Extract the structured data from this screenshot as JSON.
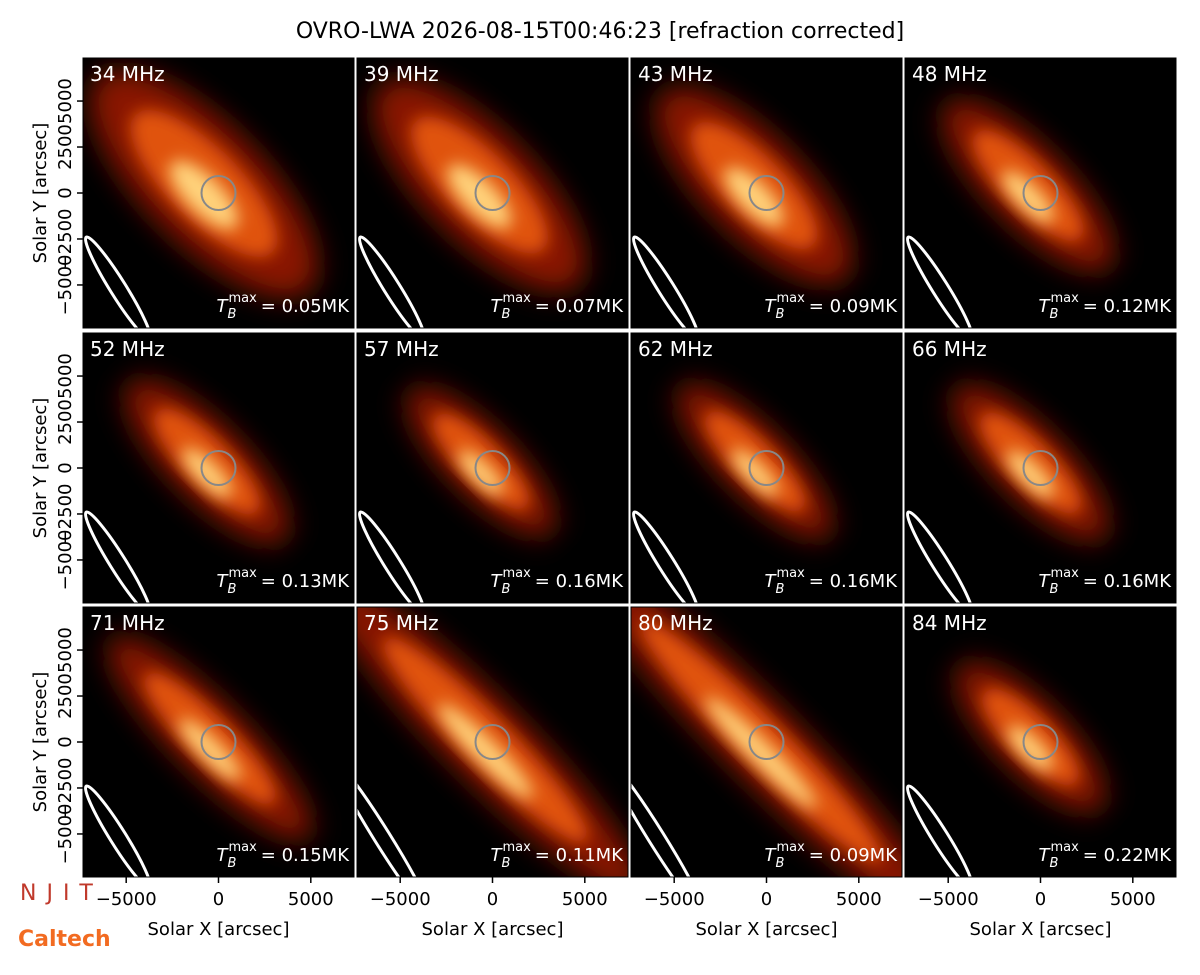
{
  "chart_data": {
    "type": "image",
    "title": "OVRO-LWA 2026-08-15T00:46:23 [refraction corrected]",
    "x_label": "Solar X [arcsec]",
    "y_label": "Solar Y [arcsec]",
    "xlim": [
      -7340,
      7340
    ],
    "ylim": [
      -7340,
      7340
    ],
    "xticks": [
      {
        "value": -5000,
        "label": "−5000"
      },
      0,
      5000
    ],
    "yticks": [
      {
        "value": -5000,
        "label": "−5000"
      },
      {
        "value": -2500,
        "label": "−2500"
      },
      0,
      2500,
      5000
    ],
    "quantity": {
      "symbol": "T",
      "subscript": "B",
      "superscript": "max"
    },
    "panels": [
      {
        "label": "34 MHz",
        "tb_max": 0.05,
        "tb_max_label": "= 0.05MK"
      },
      {
        "label": "39 MHz",
        "tb_max": 0.07,
        "tb_max_label": "= 0.07MK"
      },
      {
        "label": "43 MHz",
        "tb_max": 0.09,
        "tb_max_label": "= 0.09MK"
      },
      {
        "label": "48 MHz",
        "tb_max": 0.12,
        "tb_max_label": "= 0.12MK"
      },
      {
        "label": "52 MHz",
        "tb_max": 0.13,
        "tb_max_label": "= 0.13MK"
      },
      {
        "label": "57 MHz",
        "tb_max": 0.16,
        "tb_max_label": "= 0.16MK"
      },
      {
        "label": "62 MHz",
        "tb_max": 0.16,
        "tb_max_label": "= 0.16MK"
      },
      {
        "label": "66 MHz",
        "tb_max": 0.16,
        "tb_max_label": "= 0.16MK"
      },
      {
        "label": "71 MHz",
        "tb_max": 0.15,
        "tb_max_label": "= 0.15MK"
      },
      {
        "label": "75 MHz",
        "tb_max": 0.11,
        "tb_max_label": "= 0.11MK"
      },
      {
        "label": "80 MHz",
        "tb_max": 0.09,
        "tb_max_label": "= 0.09MK"
      },
      {
        "label": "84 MHz",
        "tb_max": 0.22,
        "tb_max_label": "= 0.22MK"
      }
    ],
    "logos": [
      "NJIT",
      "Caltech"
    ]
  }
}
